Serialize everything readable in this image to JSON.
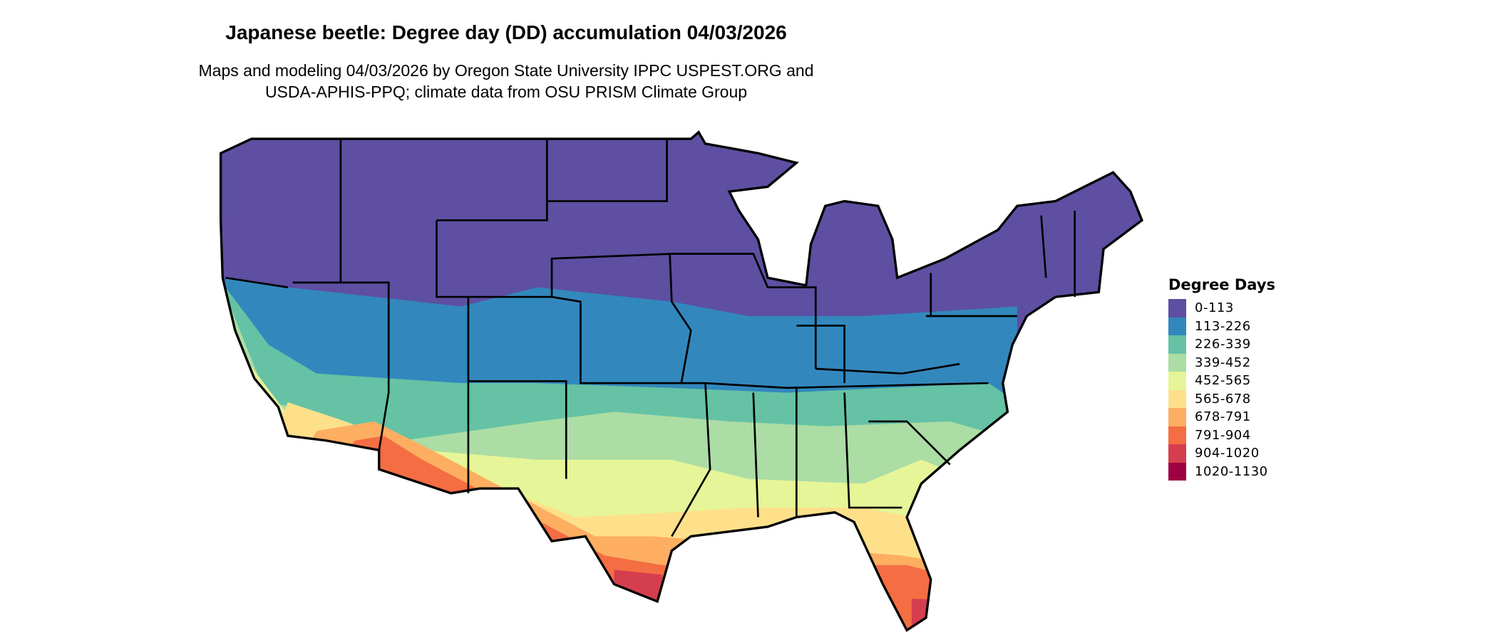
{
  "chart_data": {
    "type": "map",
    "title": "Japanese beetle: Degree day (DD) accumulation 04/03/2026",
    "subtitle_lines": [
      "Maps and modeling 04/03/2026 by Oregon State University IPPC USPEST.ORG and",
      "USDA-APHIS-PPQ; climate data from OSU PRISM Climate Group"
    ],
    "region": "Contiguous United States",
    "legend": {
      "title": "Degree Days",
      "placement": "right",
      "items": [
        {
          "label": "0-113",
          "color": "#5E4FA2"
        },
        {
          "label": "113-226",
          "color": "#3288BD"
        },
        {
          "label": "226-339",
          "color": "#66C2A5"
        },
        {
          "label": "339-452",
          "color": "#ABDDA4"
        },
        {
          "label": "452-565",
          "color": "#E6F598"
        },
        {
          "label": "565-678",
          "color": "#FEE08B"
        },
        {
          "label": "678-791",
          "color": "#FDAE61"
        },
        {
          "label": "791-904",
          "color": "#F46D43"
        },
        {
          "label": "904-1020",
          "color": "#D53E4F"
        },
        {
          "label": "1020-1130",
          "color": "#9E0142"
        }
      ]
    }
  }
}
